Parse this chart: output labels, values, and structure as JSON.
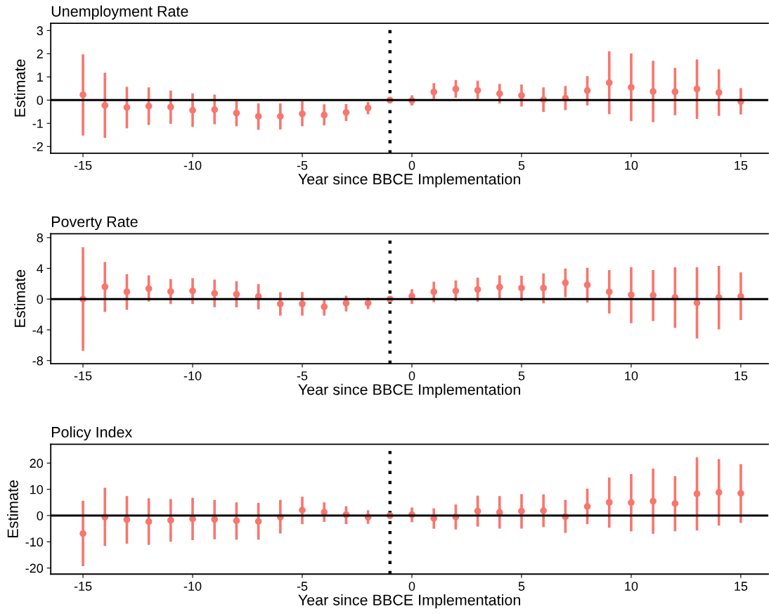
{
  "chart_data": [
    {
      "type": "scatter",
      "title": "Unemployment Rate",
      "xlabel": "Year since BBCE Implementation",
      "ylabel": "Estimate",
      "marker": "circle",
      "grid": false,
      "legend": false,
      "x": [
        -15,
        -14,
        -13,
        -12,
        -11,
        -10,
        -9,
        -8,
        -7,
        -6,
        -5,
        -4,
        -3,
        -2,
        -1,
        0,
        1,
        2,
        3,
        4,
        5,
        6,
        7,
        8,
        9,
        10,
        11,
        12,
        13,
        14,
        15
      ],
      "xlim": [
        -16.47,
        16.25
      ],
      "xticks": [
        -15,
        -10,
        -5,
        0,
        5,
        10,
        15
      ],
      "ylim": [
        -2.29,
        3.31
      ],
      "yticks": [
        -2,
        -1,
        0,
        1,
        2,
        3
      ],
      "series": [
        {
          "color": "#f8766d",
          "values": [
            0.23,
            -0.23,
            -0.32,
            -0.26,
            -0.3,
            -0.44,
            -0.41,
            -0.56,
            -0.7,
            -0.7,
            -0.59,
            -0.64,
            -0.53,
            -0.34,
            0,
            -0.02,
            0.35,
            0.48,
            0.42,
            0.28,
            0.2,
            0.02,
            0.08,
            0.41,
            0.75,
            0.55,
            0.37,
            0.36,
            0.48,
            0.33,
            -0.06
          ],
          "errors": [
            [
              -1.53,
              1.97
            ],
            [
              -1.63,
              1.18
            ],
            [
              -1.22,
              0.57
            ],
            [
              -1.07,
              0.55
            ],
            [
              -1.02,
              0.41
            ],
            [
              -1.16,
              0.29
            ],
            [
              -1.04,
              0.24
            ],
            [
              -1.13,
              -0.05
            ],
            [
              -1.28,
              -0.14
            ],
            [
              -1.26,
              -0.14
            ],
            [
              -1.13,
              -0.05
            ],
            [
              -1.09,
              -0.18
            ],
            [
              -0.9,
              -0.17
            ],
            [
              -0.61,
              -0.08
            ],
            null,
            [
              -0.23,
              0.21
            ],
            [
              0.05,
              0.73
            ],
            [
              0.1,
              0.87
            ],
            [
              0.05,
              0.84
            ],
            [
              -0.15,
              0.7
            ],
            [
              -0.28,
              0.67
            ],
            [
              -0.51,
              0.55
            ],
            [
              -0.43,
              0.61
            ],
            [
              -0.23,
              1.03
            ],
            [
              -0.6,
              2.1
            ],
            [
              -0.91,
              2.01
            ],
            [
              -0.95,
              1.69
            ],
            [
              -0.65,
              1.39
            ],
            [
              -0.81,
              1.75
            ],
            [
              -0.68,
              1.33
            ],
            [
              -0.62,
              0.52
            ]
          ]
        }
      ],
      "ref_lines": [
        {
          "axis": "y",
          "value": 0,
          "color": "#000000",
          "line_style": "solid"
        },
        {
          "axis": "x",
          "value": -1,
          "color": "#000000",
          "line_style": "dotted"
        }
      ]
    },
    {
      "type": "scatter",
      "title": "Poverty Rate",
      "xlabel": "Year since BBCE Implementation",
      "ylabel": "Estimate",
      "marker": "circle",
      "grid": false,
      "legend": false,
      "x": [
        -15,
        -14,
        -13,
        -12,
        -11,
        -10,
        -9,
        -8,
        -7,
        -6,
        -5,
        -4,
        -3,
        -2,
        -1,
        0,
        1,
        2,
        3,
        4,
        5,
        6,
        7,
        8,
        9,
        10,
        11,
        12,
        13,
        14,
        15
      ],
      "xlim": [
        -16.47,
        16.25
      ],
      "xticks": [
        -15,
        -10,
        -5,
        0,
        5,
        10,
        15
      ],
      "ylim": [
        -8.4,
        8.5
      ],
      "yticks": [
        -8,
        -4,
        0,
        4,
        8
      ],
      "series": [
        {
          "color": "#f8766d",
          "values": [
            0,
            1.6,
            0.95,
            1.36,
            0.98,
            1.07,
            0.74,
            0.62,
            0.33,
            -0.62,
            -0.62,
            -1.0,
            -0.53,
            -0.53,
            0,
            0.37,
            0.95,
            1.07,
            1.26,
            1.56,
            1.44,
            1.44,
            2.12,
            1.84,
            0.95,
            0.55,
            0.49,
            0.21,
            -0.49,
            0.21,
            0.34
          ],
          "errors": [
            [
              -6.73,
              6.76
            ],
            [
              -1.66,
              4.83
            ],
            [
              -1.39,
              3.26
            ],
            [
              -0.33,
              3.08
            ],
            [
              -0.65,
              2.61
            ],
            [
              -0.65,
              2.73
            ],
            [
              -1.04,
              2.55
            ],
            [
              -1.07,
              2.31
            ],
            [
              -1.33,
              1.96
            ],
            [
              -2.16,
              0.89
            ],
            [
              -2.16,
              0.92
            ],
            [
              -2.16,
              0.12
            ],
            [
              -1.6,
              0.44
            ],
            [
              -1.3,
              0.15
            ],
            null,
            [
              -0.61,
              1.29
            ],
            [
              -0.4,
              2.27
            ],
            [
              -0.28,
              2.42
            ],
            [
              -0.34,
              2.79
            ],
            [
              0.12,
              3.1
            ],
            [
              -0.25,
              3.04
            ],
            [
              -0.55,
              3.34
            ],
            [
              0.25,
              3.99
            ],
            [
              -0.46,
              4.08
            ],
            [
              -1.87,
              3.77
            ],
            [
              -3.13,
              4.17
            ],
            [
              -2.85,
              3.77
            ],
            [
              -3.74,
              4.14
            ],
            [
              -5.12,
              4.14
            ],
            [
              -3.93,
              4.33
            ],
            [
              -2.73,
              3.47
            ]
          ]
        }
      ],
      "ref_lines": [
        {
          "axis": "y",
          "value": 0,
          "color": "#000000",
          "line_style": "solid"
        },
        {
          "axis": "x",
          "value": -1,
          "color": "#000000",
          "line_style": "dotted"
        }
      ]
    },
    {
      "type": "scatter",
      "title": "Policy Index",
      "xlabel": "Year since BBCE Implementation",
      "ylabel": "Estimate",
      "marker": "circle",
      "grid": false,
      "legend": false,
      "x": [
        -15,
        -14,
        -13,
        -12,
        -11,
        -10,
        -9,
        -8,
        -7,
        -6,
        -5,
        -4,
        -3,
        -2,
        -1,
        0,
        1,
        2,
        3,
        4,
        5,
        6,
        7,
        8,
        9,
        10,
        11,
        12,
        13,
        14,
        15
      ],
      "xlim": [
        -16.47,
        16.25
      ],
      "xticks": [
        -15,
        -10,
        -5,
        0,
        5,
        10,
        15
      ],
      "ylim": [
        -22.3,
        27.2
      ],
      "yticks": [
        -20,
        -10,
        0,
        10,
        20
      ],
      "series": [
        {
          "color": "#f8766d",
          "values": [
            -6.84,
            -0.6,
            -1.54,
            -2.31,
            -1.79,
            -1.28,
            -1.45,
            -1.97,
            -2.22,
            -0.6,
            2.05,
            1.28,
            0.34,
            -0.6,
            0,
            0.35,
            -1.06,
            -0.53,
            1.68,
            1.24,
            1.68,
            1.86,
            -0.44,
            3.45,
            5.04,
            4.95,
            5.48,
            4.6,
            8.31,
            8.84,
            8.49
          ],
          "errors": [
            [
              -19.3,
              5.64
            ],
            [
              -11.6,
              10.6
            ],
            [
              -10.7,
              7.44
            ],
            [
              -11.2,
              6.58
            ],
            [
              -10.0,
              6.32
            ],
            [
              -9.4,
              6.75
            ],
            [
              -9.06,
              5.98
            ],
            [
              -9.15,
              5.04
            ],
            [
              -9.15,
              4.87
            ],
            [
              -6.84,
              5.98
            ],
            [
              -3.25,
              7.18
            ],
            [
              -2.39,
              5.04
            ],
            [
              -3.25,
              3.59
            ],
            [
              -3.16,
              2.05
            ],
            null,
            [
              -2.56,
              3.09
            ],
            [
              -5.04,
              2.74
            ],
            [
              -5.31,
              4.24
            ],
            [
              -4.24,
              7.6
            ],
            [
              -4.95,
              7.43
            ],
            [
              -4.95,
              8.22
            ],
            [
              -4.42,
              8.05
            ],
            [
              -6.63,
              6.01
            ],
            [
              -3.27,
              10.26
            ],
            [
              -4.6,
              14.5
            ],
            [
              -6.01,
              15.8
            ],
            [
              -6.98,
              17.9
            ],
            [
              -5.92,
              15.0
            ],
            [
              -5.66,
              22.2
            ],
            [
              -3.8,
              21.5
            ],
            [
              -2.83,
              19.6
            ]
          ]
        }
      ],
      "ref_lines": [
        {
          "axis": "y",
          "value": 0,
          "color": "#000000",
          "line_style": "solid"
        },
        {
          "axis": "x",
          "value": -1,
          "color": "#000000",
          "line_style": "dotted"
        }
      ]
    }
  ]
}
